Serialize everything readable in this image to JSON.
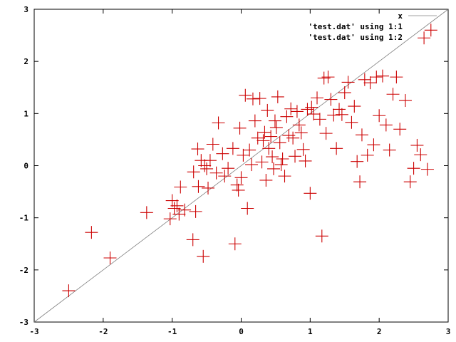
{
  "chart_data": {
    "type": "scatter",
    "title": "",
    "xlabel": "",
    "ylabel": "",
    "xlim": [
      -3,
      3
    ],
    "ylim": [
      -3,
      3
    ],
    "xticks": [
      "-3",
      "-2",
      "-1",
      "0",
      "1",
      "2",
      "3"
    ],
    "yticks": [
      "-3",
      "-2",
      "-1",
      "0",
      "1",
      "2",
      "3"
    ],
    "grid": false,
    "legend_position": "top-right",
    "series": [
      {
        "name": "x",
        "kind": "line",
        "color": "#808080",
        "x": [
          -3,
          3
        ],
        "y": [
          -3,
          3
        ]
      },
      {
        "name": "'test.dat' using 1:1",
        "kind": "points",
        "color": "#ff0000",
        "x": [],
        "y": []
      },
      {
        "name": "'test.dat' using 1:2",
        "kind": "points",
        "color": "#cc0000",
        "x": [
          -2.5,
          -2.17,
          -1.9,
          -1.37,
          -1.03,
          -1.0,
          -0.97,
          -0.93,
          -0.9,
          -0.88,
          -0.82,
          -0.7,
          -0.69,
          -0.66,
          -0.63,
          -0.62,
          -0.58,
          -0.55,
          -0.53,
          -0.5,
          -0.48,
          -0.45,
          -0.41,
          -0.36,
          -0.33,
          -0.27,
          -0.24,
          -0.19,
          -0.12,
          -0.09,
          -0.06,
          -0.04,
          -0.02,
          0.0,
          0.03,
          0.06,
          0.09,
          0.12,
          0.15,
          0.17,
          0.2,
          0.24,
          0.27,
          0.3,
          0.32,
          0.34,
          0.36,
          0.38,
          0.4,
          0.43,
          0.45,
          0.47,
          0.49,
          0.51,
          0.53,
          0.56,
          0.58,
          0.6,
          0.63,
          0.66,
          0.69,
          0.72,
          0.75,
          0.78,
          0.81,
          0.84,
          0.87,
          0.9,
          0.93,
          0.96,
          1.0,
          1.02,
          1.05,
          1.1,
          1.14,
          1.17,
          1.2,
          1.23,
          1.26,
          1.3,
          1.34,
          1.38,
          1.42,
          1.46,
          1.5,
          1.55,
          1.6,
          1.64,
          1.68,
          1.72,
          1.75,
          1.79,
          1.83,
          1.87,
          1.92,
          1.96,
          2.0,
          2.05,
          2.1,
          2.15,
          2.2,
          2.25,
          2.3,
          2.38,
          2.45,
          2.5,
          2.55,
          2.6,
          2.65,
          2.7,
          2.75
        ],
        "y": [
          -2.4,
          -1.28,
          -1.77,
          -0.9,
          -1.02,
          -0.67,
          -0.82,
          -0.77,
          -0.93,
          -0.41,
          -0.85,
          -1.42,
          -0.12,
          -0.88,
          0.32,
          -0.4,
          0.1,
          -1.74,
          0.0,
          -0.06,
          -0.43,
          0.1,
          0.41,
          -0.14,
          0.82,
          0.23,
          -0.2,
          -0.05,
          0.33,
          -1.5,
          -0.37,
          -0.47,
          0.72,
          -0.23,
          0.2,
          1.35,
          -0.82,
          0.3,
          0.02,
          1.28,
          0.86,
          0.53,
          1.29,
          0.07,
          0.48,
          0.64,
          -0.28,
          1.06,
          0.33,
          0.56,
          0.17,
          -0.06,
          0.86,
          0.73,
          1.32,
          0.44,
          0.02,
          0.13,
          -0.2,
          0.94,
          0.58,
          1.09,
          0.53,
          0.18,
          1.04,
          0.78,
          0.63,
          0.31,
          0.09,
          1.08,
          -0.53,
          1.12,
          0.99,
          1.3,
          0.89,
          -1.35,
          1.68,
          0.62,
          1.7,
          1.27,
          0.97,
          0.33,
          1.08,
          0.98,
          1.4,
          1.6,
          0.83,
          1.14,
          0.08,
          -0.31,
          0.59,
          1.65,
          0.2,
          1.59,
          0.4,
          1.7,
          0.96,
          1.72,
          0.78,
          0.3,
          1.37,
          1.7,
          0.7,
          1.25,
          -0.31,
          -0.05,
          0.39,
          0.21,
          2.45,
          -0.07,
          2.6
        ]
      }
    ]
  }
}
